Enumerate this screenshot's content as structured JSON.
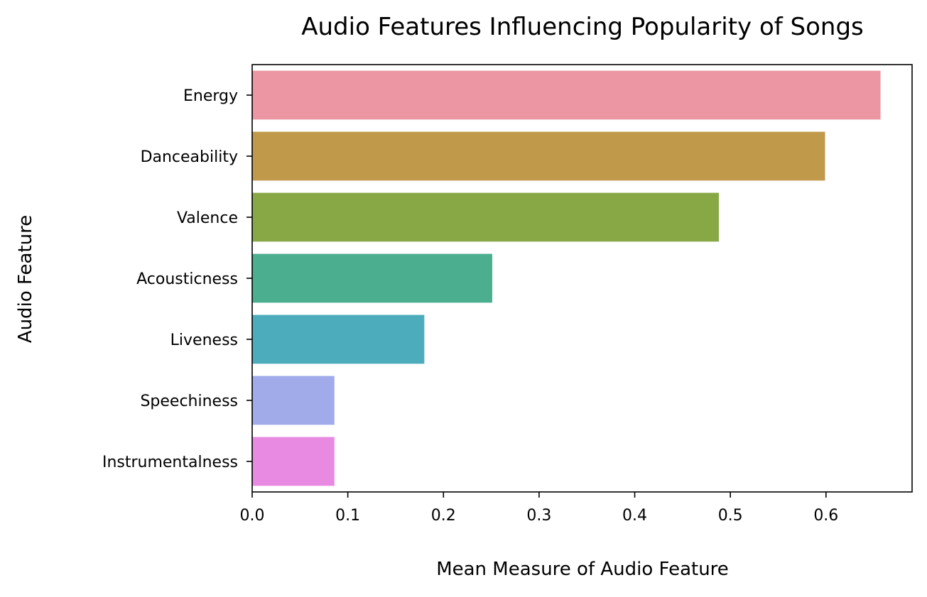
{
  "chart_data": {
    "type": "bar",
    "orientation": "horizontal",
    "title": "Audio Features Influencing Popularity of Songs",
    "xlabel": "Mean Measure of Audio Feature",
    "ylabel": "Audio Feature",
    "categories": [
      "Energy",
      "Danceability",
      "Valence",
      "Acousticness",
      "Liveness",
      "Speechiness",
      "Instrumentalness"
    ],
    "values": [
      0.657,
      0.599,
      0.488,
      0.251,
      0.18,
      0.086,
      0.086
    ],
    "colors": [
      "#eb96a2",
      "#c0994b",
      "#88a846",
      "#4aae8f",
      "#4cacbc",
      "#a1abea",
      "#e88ae1"
    ],
    "xlim": [
      0,
      0.69
    ],
    "x_ticks": [
      0.0,
      0.1,
      0.2,
      0.3,
      0.4,
      0.5,
      0.6
    ],
    "x_tick_labels": [
      "0.0",
      "0.1",
      "0.2",
      "0.3",
      "0.4",
      "0.5",
      "0.6"
    ],
    "grid": false,
    "legend": "none"
  }
}
